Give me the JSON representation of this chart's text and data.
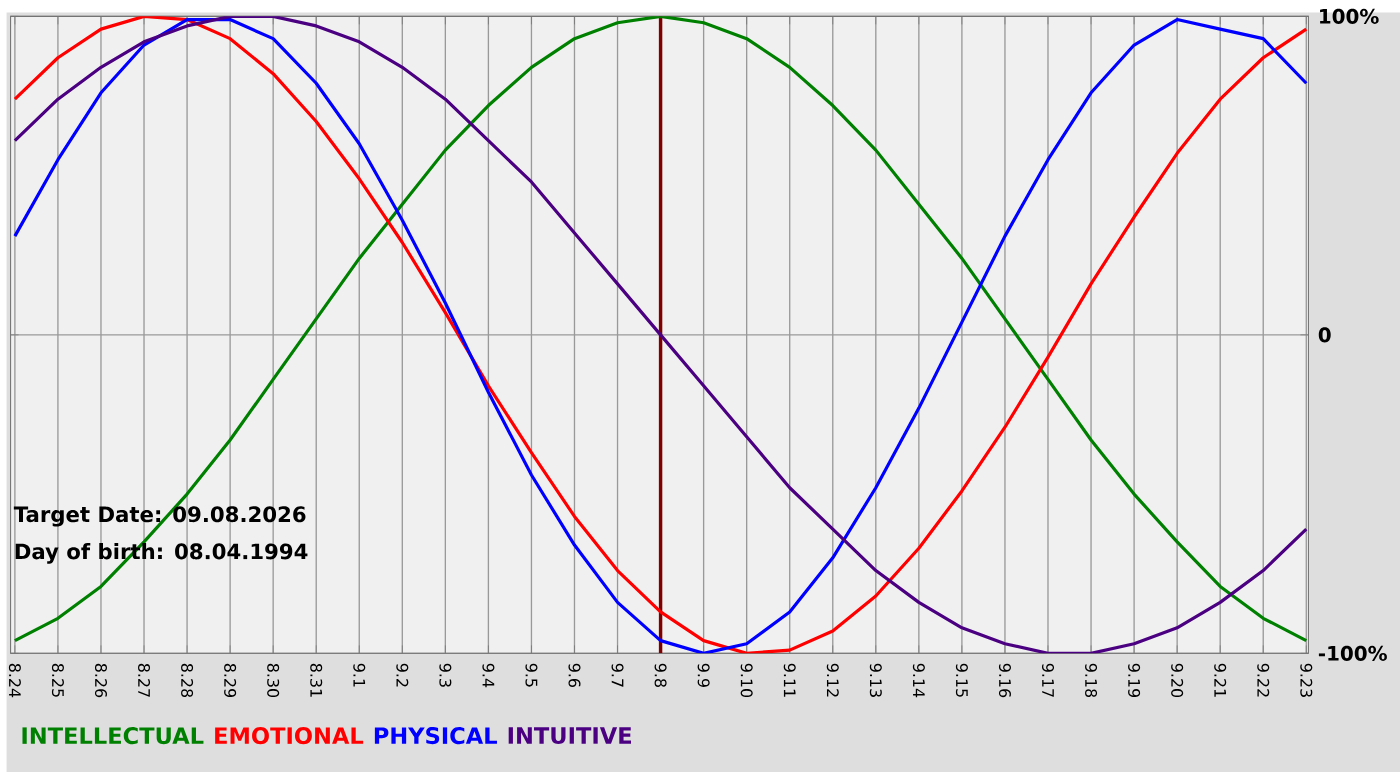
{
  "chart_data": {
    "type": "line",
    "categories": [
      "8.24",
      "8.25",
      "8.26",
      "8.27",
      "8.28",
      "8.29",
      "8.30",
      "8.31",
      "9.1",
      "9.2",
      "9.3",
      "9.4",
      "9.5",
      "9.6",
      "9.7",
      "9.8",
      "9.9",
      "9.10",
      "9.11",
      "9.12",
      "9.13",
      "9.14",
      "9.15",
      "9.16",
      "9.17",
      "9.18",
      "9.19",
      "9.20",
      "9.21",
      "9.22",
      "9.23"
    ],
    "series": [
      {
        "name": "INTELLECTUAL",
        "color": "#008000",
        "values": [
          -96,
          -89,
          -79,
          -65,
          -50,
          -33,
          -14,
          5,
          24,
          41,
          58,
          72,
          84,
          93,
          98,
          100,
          98,
          93,
          84,
          72,
          58,
          41,
          24,
          5,
          -14,
          -33,
          -50,
          -65,
          -79,
          -89,
          -96
        ]
      },
      {
        "name": "EMOTIONAL",
        "color": "#ff0000",
        "values": [
          74,
          87,
          96,
          100,
          99,
          93,
          82,
          67,
          49,
          29,
          7,
          -16,
          -37,
          -57,
          -74,
          -87,
          -96,
          -100,
          -99,
          -93,
          -82,
          -67,
          -49,
          -29,
          -7,
          16,
          37,
          57,
          74,
          87,
          96
        ]
      },
      {
        "name": "PHYSICAL",
        "color": "#0000ff",
        "values": [
          31,
          55,
          76,
          91,
          99,
          99,
          93,
          79,
          60,
          36,
          10,
          -18,
          -44,
          -66,
          -84,
          -96,
          -100,
          -97,
          -87,
          -70,
          -48,
          -23,
          4,
          31,
          55,
          76,
          91,
          99,
          96,
          93,
          79
        ]
      },
      {
        "name": "INTUITIVE",
        "color": "#4b0082",
        "values": [
          61,
          74,
          84,
          92,
          97,
          100,
          100,
          97,
          92,
          84,
          74,
          61,
          48,
          32,
          16,
          0,
          -16,
          -32,
          -48,
          -61,
          -74,
          -84,
          -92,
          -97,
          -100,
          -100,
          -97,
          -92,
          -84,
          -74,
          -61
        ]
      }
    ],
    "ylim": [
      -100,
      100
    ],
    "yticks": [
      {
        "value": -100,
        "label": "-100%"
      },
      0,
      {
        "value": 100,
        "label": "100%"
      }
    ],
    "grid": true,
    "legend": "bottom left",
    "ref_lines": [
      {
        "axis": "x",
        "value": "9.8",
        "color": "#800000"
      }
    ],
    "annotations": [
      "Target Date: 09.08.2026",
      "Day of birth: 08.04.1994"
    ]
  }
}
